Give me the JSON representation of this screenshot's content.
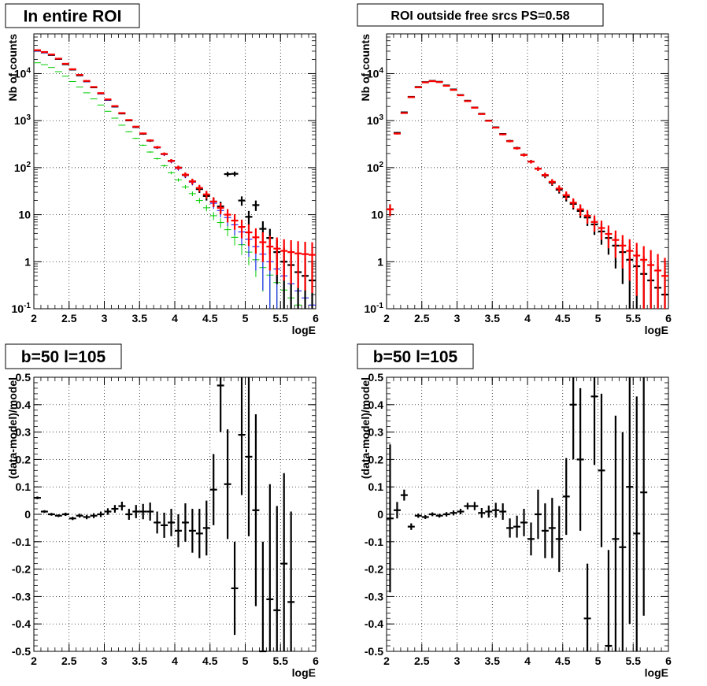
{
  "colors": {
    "data": "#000000",
    "model": "#ff0000",
    "blue": "#0000ff",
    "green": "#00cc00",
    "grid": "#000000"
  },
  "chart_data": [
    {
      "type": "scatter",
      "title": "In entire ROI",
      "xlabel": "logE",
      "ylabel": "Nb of counts",
      "xlim": [
        2,
        6
      ],
      "ylim": [
        0.1,
        70000
      ],
      "yscale": "log",
      "grid": true,
      "xticks": [
        "2",
        "2.5",
        "3",
        "3.5",
        "4",
        "4.5",
        "5",
        "5.5",
        "6"
      ],
      "yticks": [
        "10^-1",
        "1",
        "10",
        "10^2",
        "10^3",
        "10^4"
      ],
      "bin_width": 0.1,
      "x": [
        2.05,
        2.15,
        2.25,
        2.35,
        2.45,
        2.55,
        2.65,
        2.75,
        2.85,
        2.95,
        3.05,
        3.15,
        3.25,
        3.35,
        3.45,
        3.55,
        3.65,
        3.75,
        3.85,
        3.95,
        4.05,
        4.15,
        4.25,
        4.35,
        4.45,
        4.55,
        4.65,
        4.75,
        4.85,
        4.95,
        5.05,
        5.15,
        5.25,
        5.35,
        5.45,
        5.55,
        5.65,
        5.75,
        5.85,
        5.95
      ],
      "series": [
        {
          "name": "",
          "color": "green",
          "values": [
            17000,
            15500,
            13500,
            11000,
            8800,
            6800,
            5200,
            3900,
            2900,
            2150,
            1580,
            1130,
            800,
            580,
            420,
            300,
            215,
            155,
            110,
            78,
            55,
            39,
            28,
            20,
            14,
            9.5,
            6.8,
            4.8,
            3.3,
            2.3,
            1.6,
            1.1,
            0.75,
            0.52,
            0.36,
            0.25,
            0.17,
            0.12,
            0.08,
            0.06
          ],
          "err": false
        },
        {
          "name": "",
          "color": "blue",
          "values": [
            30000,
            27500,
            24500,
            20000,
            15600,
            12000,
            9000,
            6700,
            5000,
            3700,
            2700,
            1950,
            1400,
            1000,
            720,
            520,
            370,
            265,
            190,
            135,
            96,
            68,
            49,
            35,
            25,
            17.5,
            12.3,
            8.7,
            6.1,
            4.3,
            3.0,
            2.1,
            1.45,
            1.0,
            0.7,
            0.5,
            0.34,
            0.24,
            0.17,
            0.12
          ],
          "err": true
        },
        {
          "name": "",
          "color": "data",
          "values": [
            31000,
            28500,
            25000,
            20500,
            15800,
            12200,
            9200,
            6900,
            5100,
            3800,
            2800,
            2000,
            1420,
            1010,
            730,
            525,
            375,
            270,
            195,
            140,
            100,
            70,
            51,
            35,
            25,
            19,
            15,
            73,
            74,
            20,
            9,
            16,
            5,
            3.2,
            1.6,
            1.0,
            0.85,
            0.6,
            0.5,
            0.4
          ],
          "err": true
        },
        {
          "name": "",
          "color": "model",
          "values": [
            31500,
            28800,
            25500,
            20800,
            16200,
            12400,
            9400,
            7000,
            5200,
            3850,
            2830,
            2040,
            1450,
            1030,
            745,
            535,
            380,
            272,
            196,
            140,
            100,
            71,
            51,
            37,
            27,
            19,
            14,
            10,
            7.5,
            5.5,
            4.2,
            3.3,
            2.6,
            2.1,
            1.9,
            1.7,
            1.6,
            1.5,
            1.45,
            1.4
          ],
          "err": true
        }
      ]
    },
    {
      "type": "scatter",
      "title": "ROI outside free srcs PS=0.58",
      "xlabel": "logE",
      "ylabel": "Nb of counts",
      "xlim": [
        2,
        6
      ],
      "ylim": [
        0.1,
        70000
      ],
      "yscale": "log",
      "grid": true,
      "xticks": [
        "2",
        "2.5",
        "3",
        "3.5",
        "4",
        "4.5",
        "5",
        "5.5",
        "6"
      ],
      "yticks": [
        "10^-1",
        "1",
        "10",
        "10^2",
        "10^3",
        "10^4"
      ],
      "bin_width": 0.1,
      "x": [
        2.05,
        2.15,
        2.25,
        2.35,
        2.45,
        2.55,
        2.65,
        2.75,
        2.85,
        2.95,
        3.05,
        3.15,
        3.25,
        3.35,
        3.45,
        3.55,
        3.65,
        3.75,
        3.85,
        3.95,
        4.05,
        4.15,
        4.25,
        4.35,
        4.45,
        4.55,
        4.65,
        4.75,
        4.85,
        4.95,
        5.05,
        5.15,
        5.25,
        5.35,
        5.45,
        5.55,
        5.65,
        5.75,
        5.85,
        5.95
      ],
      "series": [
        {
          "name": "",
          "color": "data",
          "values": [
            13,
            550,
            1500,
            3200,
            5200,
            6600,
            7000,
            6700,
            5600,
            4600,
            3500,
            2650,
            1900,
            1400,
            1000,
            720,
            520,
            370,
            262,
            188,
            135,
            95,
            68,
            48,
            34,
            24,
            17,
            12,
            8.7,
            6.2,
            4.4,
            3.2,
            2.2,
            1.6,
            1.1,
            0.8,
            0.55,
            0.4,
            0.28,
            0.2
          ],
          "err": true
        },
        {
          "name": "",
          "color": "model",
          "values": [
            13,
            530,
            1450,
            3150,
            5100,
            6500,
            6900,
            6600,
            5500,
            4500,
            3450,
            2600,
            1880,
            1380,
            990,
            710,
            510,
            365,
            258,
            186,
            134,
            95,
            70,
            50,
            36,
            26,
            18,
            13,
            9.5,
            7,
            5.2,
            3.9,
            2.9,
            2.2,
            1.7,
            1.35,
            1.1,
            0.85,
            0.65,
            0.5
          ],
          "err": true
        }
      ]
    },
    {
      "type": "scatter",
      "title": "b=50 l=105",
      "xlabel": "logE",
      "ylabel": "(data-model)/model",
      "xlim": [
        2,
        6
      ],
      "ylim": [
        -0.5,
        0.5
      ],
      "grid": true,
      "xticks": [
        "2",
        "2.5",
        "3",
        "3.5",
        "4",
        "4.5",
        "5",
        "5.5",
        "6"
      ],
      "yticks": [
        "-0.5",
        "-0.4",
        "-0.3",
        "-0.2",
        "-0.1",
        "0",
        "0.1",
        "0.2",
        "0.3",
        "0.4",
        "0.5"
      ],
      "bin_width": 0.1,
      "x": [
        2.05,
        2.15,
        2.25,
        2.35,
        2.45,
        2.55,
        2.65,
        2.75,
        2.85,
        2.95,
        3.05,
        3.15,
        3.25,
        3.35,
        3.45,
        3.55,
        3.65,
        3.75,
        3.85,
        3.95,
        4.05,
        4.15,
        4.25,
        4.35,
        4.45,
        4.55,
        4.65,
        4.75,
        4.85,
        4.95,
        5.05,
        5.15,
        5.25,
        5.35,
        5.45,
        5.55,
        5.65
      ],
      "series": [
        {
          "name": "",
          "color": "data",
          "values": [
            0.06,
            0.01,
            0.0,
            -0.005,
            0.0,
            -0.015,
            -0.005,
            -0.01,
            -0.005,
            0.0,
            0.01,
            0.02,
            0.03,
            0.0,
            0.01,
            0.01,
            0.01,
            -0.03,
            -0.04,
            -0.03,
            -0.06,
            -0.03,
            -0.06,
            -0.07,
            -0.05,
            0.09,
            0.47,
            0.11,
            -0.27,
            0.29,
            0.21,
            0.015,
            -0.5,
            -0.31,
            -0.35,
            -0.18,
            -0.32
          ],
          "errors": [
            0.005,
            0.005,
            0.005,
            0.005,
            0.006,
            0.006,
            0.007,
            0.008,
            0.009,
            0.01,
            0.012,
            0.014,
            0.016,
            0.02,
            0.024,
            0.028,
            0.033,
            0.04,
            0.046,
            0.05,
            0.06,
            0.07,
            0.08,
            0.09,
            0.1,
            0.13,
            0.17,
            0.2,
            0.17,
            0.22,
            0.29,
            0.35,
            0.4,
            0.42,
            0.38,
            0.33,
            0.33
          ]
        }
      ]
    },
    {
      "type": "scatter",
      "title": "b=50 l=105",
      "xlabel": "logE",
      "ylabel": "(data-model)/model",
      "xlim": [
        2,
        6
      ],
      "ylim": [
        -0.5,
        0.5
      ],
      "grid": true,
      "xticks": [
        "2",
        "2.5",
        "3",
        "3.5",
        "4",
        "4.5",
        "5",
        "5.5",
        "6"
      ],
      "yticks": [
        "-0.5",
        "-0.4",
        "-0.3",
        "-0.2",
        "-0.1",
        "0",
        "0.1",
        "0.2",
        "0.3",
        "0.4",
        "0.5"
      ],
      "bin_width": 0.1,
      "x": [
        2.05,
        2.15,
        2.25,
        2.35,
        2.45,
        2.55,
        2.65,
        2.75,
        2.85,
        2.95,
        3.05,
        3.15,
        3.25,
        3.35,
        3.45,
        3.55,
        3.65,
        3.75,
        3.85,
        3.95,
        4.05,
        4.15,
        4.25,
        4.35,
        4.45,
        4.55,
        4.65,
        4.75,
        4.85,
        4.95,
        5.05,
        5.15,
        5.25,
        5.35,
        5.45,
        5.55,
        5.65
      ],
      "series": [
        {
          "name": "",
          "color": "data",
          "values": [
            -0.015,
            0.015,
            0.07,
            -0.045,
            -0.005,
            -0.01,
            0.0,
            -0.005,
            0.0,
            0.005,
            0.01,
            0.03,
            0.03,
            0.005,
            0.01,
            0.015,
            0.01,
            -0.05,
            -0.045,
            -0.03,
            -0.09,
            0.0,
            -0.06,
            -0.05,
            -0.09,
            0.065,
            0.4,
            0.2,
            -0.38,
            0.43,
            0.16,
            -0.48,
            -0.09,
            -0.12,
            0.1,
            -0.07,
            0.08
          ],
          "errors": [
            0.27,
            0.03,
            0.02,
            0.012,
            0.008,
            0.007,
            0.007,
            0.007,
            0.008,
            0.009,
            0.01,
            0.012,
            0.015,
            0.018,
            0.022,
            0.027,
            0.03,
            0.035,
            0.04,
            0.05,
            0.06,
            0.09,
            0.1,
            0.11,
            0.12,
            0.14,
            0.2,
            0.26,
            0.2,
            0.25,
            0.28,
            0.35,
            0.45,
            0.42,
            0.5,
            0.5,
            0.45
          ]
        }
      ]
    }
  ]
}
